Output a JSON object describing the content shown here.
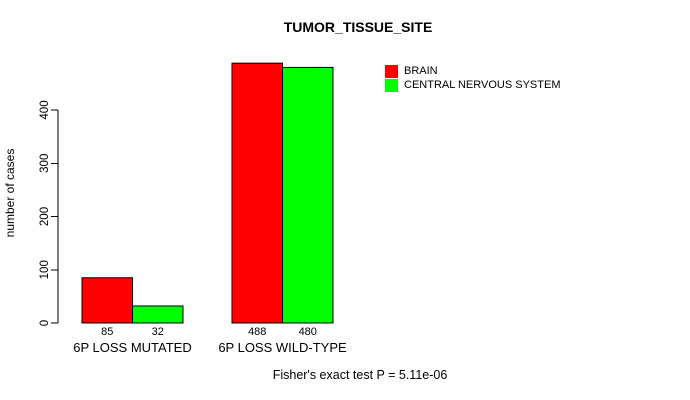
{
  "chart_data": {
    "type": "bar",
    "title": "TUMOR_TISSUE_SITE",
    "ylabel": "number of cases",
    "xlabel": "",
    "categories": [
      "6P LOSS MUTATED",
      "6P LOSS WILD-TYPE"
    ],
    "series": [
      {
        "name": "BRAIN",
        "color": "#FF0000",
        "values": [
          85,
          488
        ]
      },
      {
        "name": "CENTRAL NERVOUS SYSTEM",
        "color": "#00FF00",
        "values": [
          32,
          480
        ]
      }
    ],
    "yticks": [
      0,
      100,
      200,
      300,
      400
    ],
    "ylim": [
      0,
      500
    ],
    "bar_value_labels": true,
    "grid": false,
    "legend_position": "top-right",
    "annotation": "Fisher's exact test P = 5.11e-06"
  },
  "colors": {
    "background": "#FFFFFF",
    "axis": "#000000",
    "text": "#000000",
    "bar_border": "#000000"
  }
}
